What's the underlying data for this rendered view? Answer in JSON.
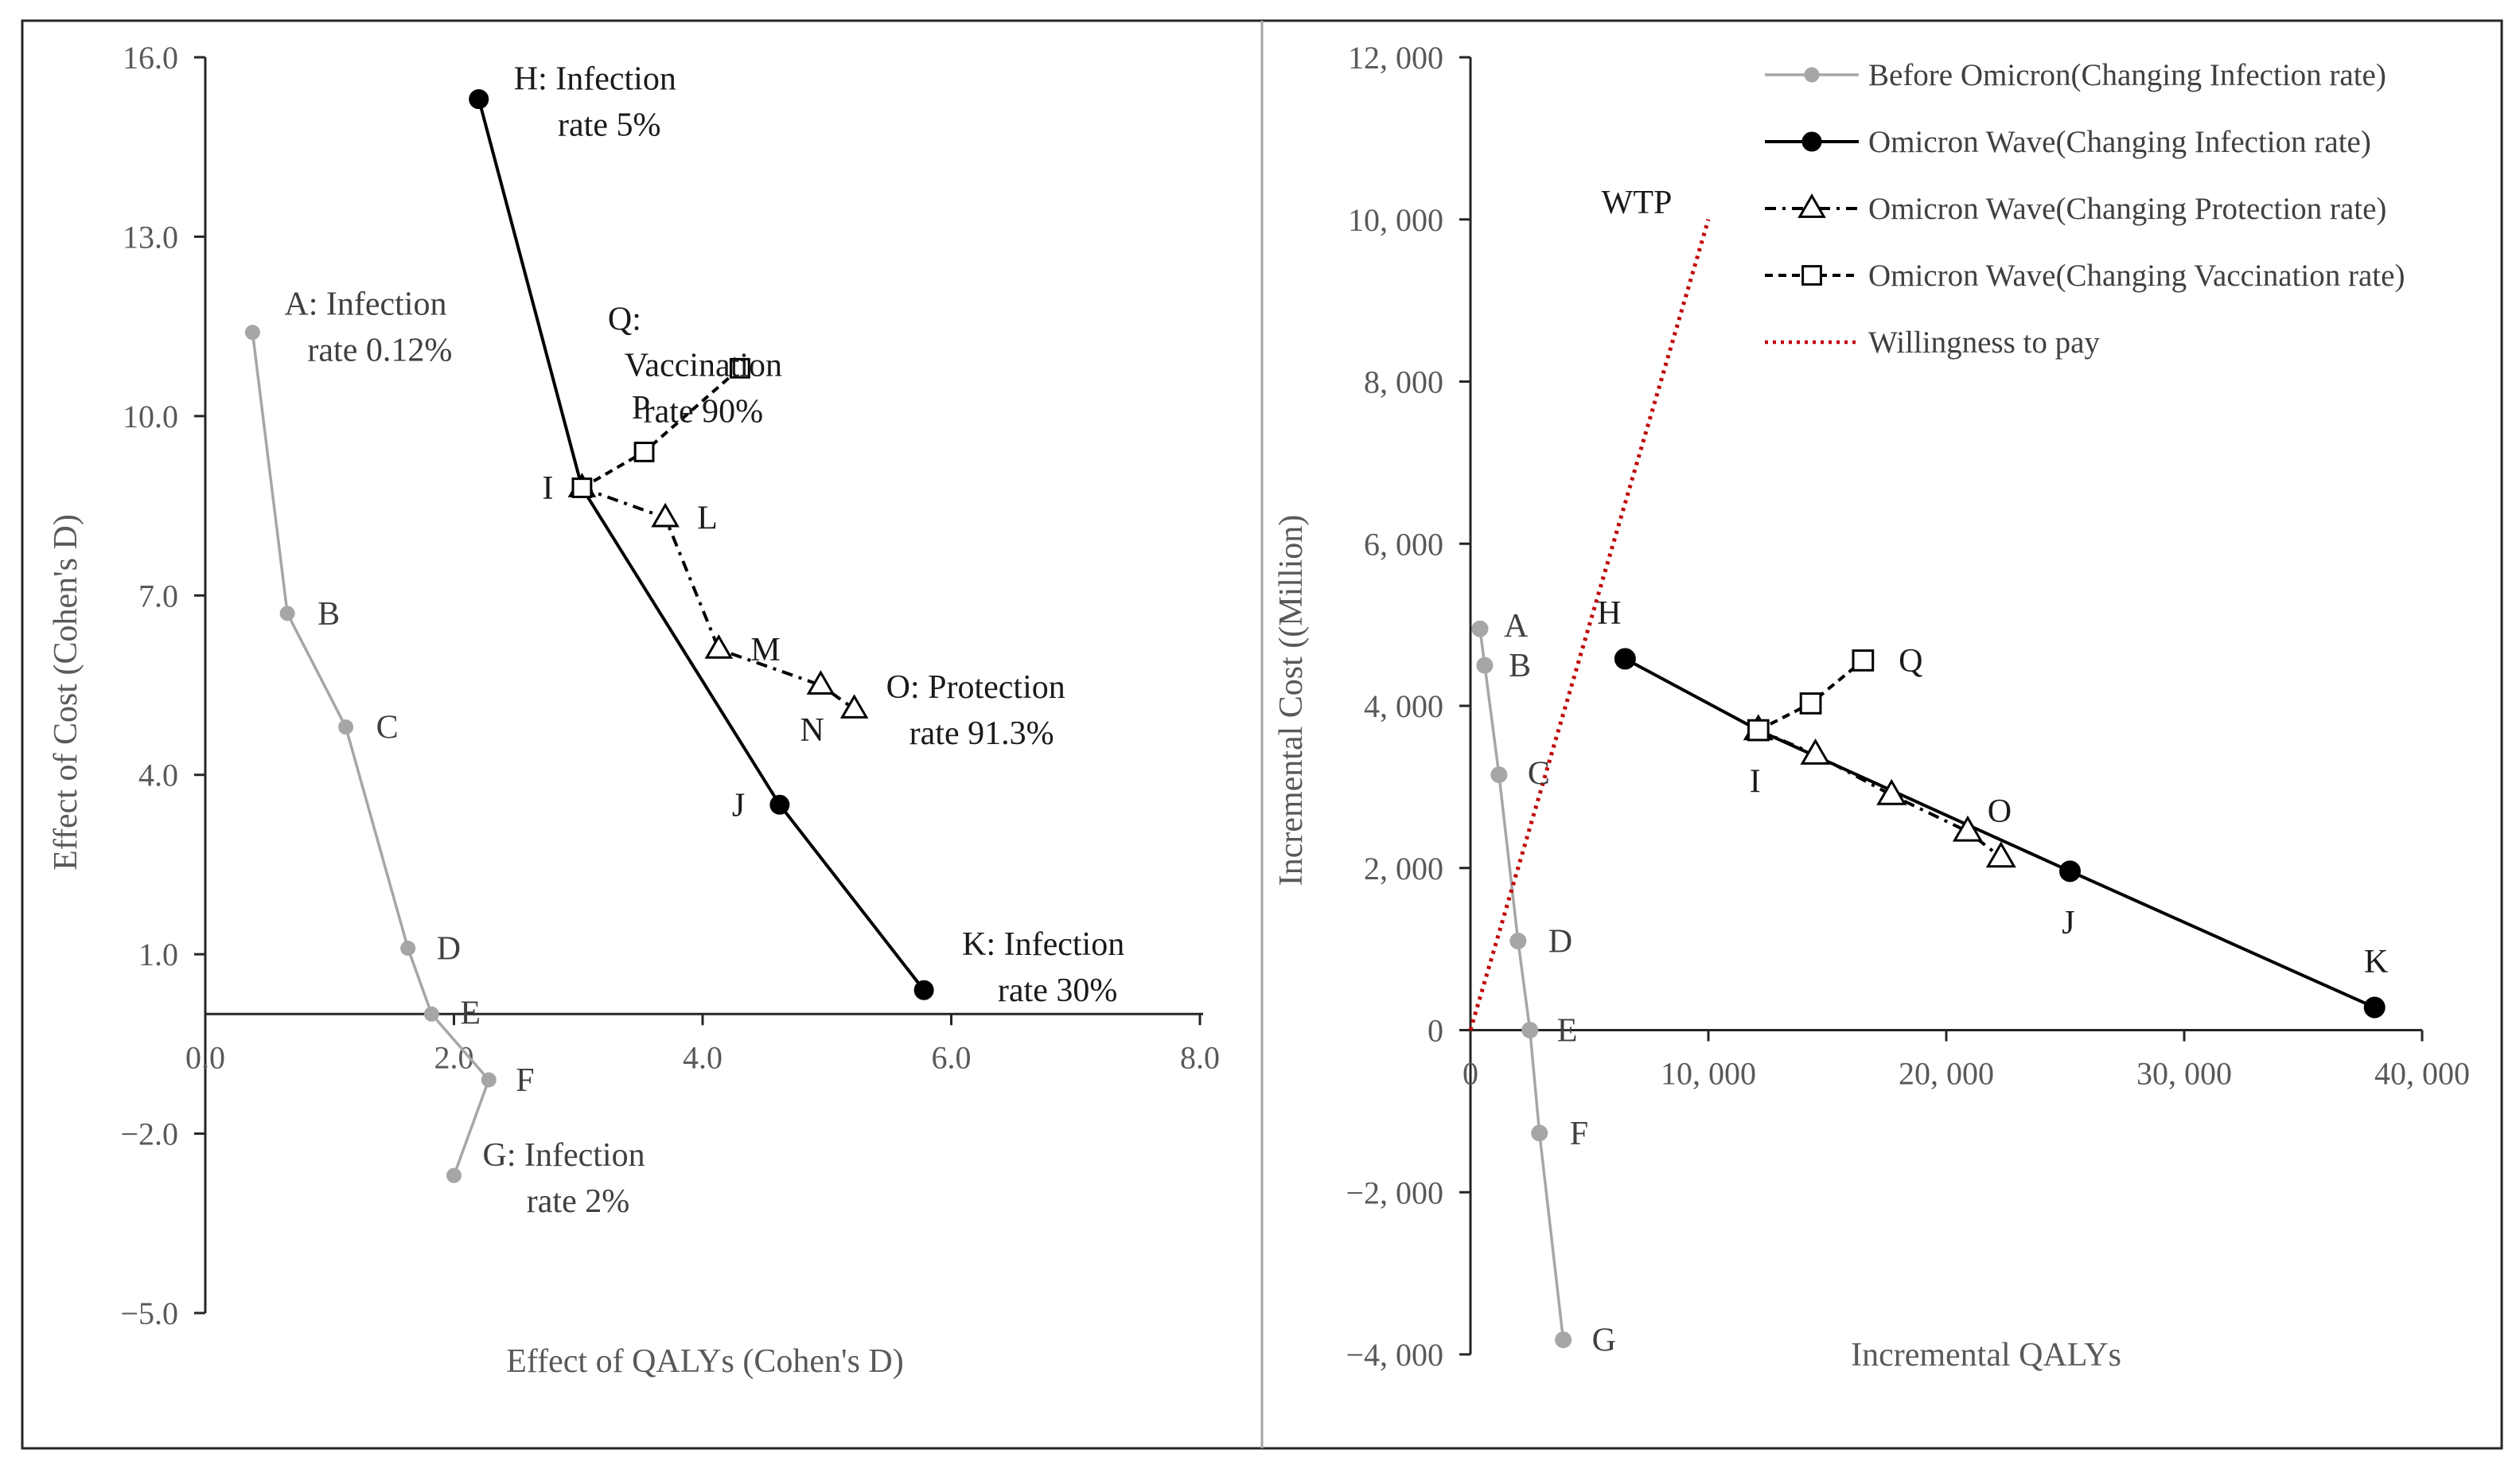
{
  "chart_data": [
    {
      "type": "line",
      "title": "",
      "xlabel": "Effect of QALYs (Cohen's D)",
      "ylabel": "Effect of Cost (Cohen's D)",
      "xlim": [
        0,
        8
      ],
      "ylim": [
        -5,
        16
      ],
      "x_ticks": [
        0,
        2,
        4,
        6,
        8
      ],
      "x_tick_labels": [
        "0.0",
        "2.0",
        "4.0",
        "6.0",
        "8.0"
      ],
      "y_ticks": [
        16,
        13,
        10,
        7,
        4,
        1,
        -2,
        -5
      ],
      "y_tick_labels": [
        "16.0",
        "13.0",
        "10.0",
        "7.0",
        "4.0",
        "1.0",
        "−2.0",
        "−5.0"
      ],
      "series": [
        {
          "name": "Before Omicron(Changing Infection rate)",
          "color": "#a6a6a6",
          "marker": "circle",
          "points": [
            {
              "id": "A",
              "x": 0.38,
              "y": 11.4
            },
            {
              "id": "B",
              "x": 0.66,
              "y": 6.7
            },
            {
              "id": "C",
              "x": 1.13,
              "y": 4.8
            },
            {
              "id": "D",
              "x": 1.63,
              "y": 1.1
            },
            {
              "id": "E",
              "x": 1.82,
              "y": 0.0
            },
            {
              "id": "F",
              "x": 2.28,
              "y": -1.1
            },
            {
              "id": "G",
              "x": 2.0,
              "y": -2.7
            }
          ]
        },
        {
          "name": "Omicron Wave(Changing Infection rate)",
          "color": "#000000",
          "marker": "circle",
          "points": [
            {
              "id": "H",
              "x": 2.2,
              "y": 15.3
            },
            {
              "id": "I",
              "x": 3.03,
              "y": 8.8
            },
            {
              "id": "J",
              "x": 4.62,
              "y": 3.5
            },
            {
              "id": "K",
              "x": 5.78,
              "y": 0.4
            }
          ]
        },
        {
          "name": "Omicron Wave(Changing Protection rate)",
          "color": "#000000",
          "marker": "triangle",
          "points": [
            {
              "id": "I",
              "x": 3.03,
              "y": 8.8
            },
            {
              "id": "L",
              "x": 3.7,
              "y": 8.3
            },
            {
              "id": "M",
              "x": 4.13,
              "y": 6.1
            },
            {
              "id": "N",
              "x": 4.95,
              "y": 5.5
            },
            {
              "id": "O",
              "x": 5.22,
              "y": 5.1
            }
          ]
        },
        {
          "name": "Omicron Wave(Changing Vaccination rate)",
          "color": "#000000",
          "marker": "square",
          "points": [
            {
              "id": "I",
              "x": 3.03,
              "y": 8.8
            },
            {
              "id": "P",
              "x": 3.53,
              "y": 9.4
            },
            {
              "id": "Q",
              "x": 4.3,
              "y": 10.8
            }
          ]
        }
      ],
      "annotations": [
        {
          "point": "A",
          "lines": [
            "A: Infection",
            "rate 0.12%"
          ]
        },
        {
          "point": "B",
          "lines": [
            "B"
          ]
        },
        {
          "point": "C",
          "lines": [
            "C"
          ]
        },
        {
          "point": "D",
          "lines": [
            "D"
          ]
        },
        {
          "point": "E",
          "lines": [
            "E"
          ]
        },
        {
          "point": "F",
          "lines": [
            "F"
          ]
        },
        {
          "point": "G",
          "lines": [
            "G: Infection",
            "rate 2%"
          ]
        },
        {
          "point": "H",
          "lines": [
            "H: Infection",
            "rate 5%"
          ]
        },
        {
          "point": "I",
          "lines": [
            "I"
          ]
        },
        {
          "point": "J",
          "lines": [
            "J"
          ]
        },
        {
          "point": "K",
          "lines": [
            "K: Infection",
            "rate 30%"
          ]
        },
        {
          "point": "L",
          "lines": [
            "L"
          ]
        },
        {
          "point": "M",
          "lines": [
            "M"
          ]
        },
        {
          "point": "N",
          "lines": [
            "N"
          ]
        },
        {
          "point": "O",
          "lines": [
            "O: Protection",
            "rate 91.3%"
          ]
        },
        {
          "point": "P",
          "lines": [
            "P"
          ]
        },
        {
          "point": "Q",
          "lines": [
            "Q:",
            "Vaccination",
            "rate 90%"
          ]
        }
      ]
    },
    {
      "type": "line",
      "title": "",
      "xlabel": "Incremental QALYs",
      "ylabel": "Incremental Cost ((Million)",
      "xlim": [
        0,
        40000
      ],
      "ylim": [
        -4000,
        12000
      ],
      "x_ticks": [
        0,
        10000,
        20000,
        30000,
        40000
      ],
      "x_tick_labels": [
        "0",
        "10, 000",
        "20, 000",
        "30, 000",
        "40, 000"
      ],
      "y_ticks": [
        12000,
        10000,
        8000,
        6000,
        4000,
        2000,
        0,
        -2000,
        -4000
      ],
      "y_tick_labels": [
        "12, 000",
        "10, 000",
        "8, 000",
        "6, 000",
        "4, 000",
        "2, 000",
        "0",
        "−2, 000",
        "−4, 000"
      ],
      "series": [
        {
          "name": "Before Omicron(Changing Infection rate)",
          "color": "#a6a6a6",
          "marker": "circle",
          "points": [
            {
              "id": "A",
              "x": 400,
              "y": 4950
            },
            {
              "id": "B",
              "x": 600,
              "y": 4500
            },
            {
              "id": "C",
              "x": 1200,
              "y": 3150
            },
            {
              "id": "D",
              "x": 2000,
              "y": 1100
            },
            {
              "id": "E",
              "x": 2500,
              "y": 0
            },
            {
              "id": "F",
              "x": 2900,
              "y": -1270
            },
            {
              "id": "G",
              "x": 3900,
              "y": -3820
            }
          ]
        },
        {
          "name": "Omicron Wave(Changing Infection rate)",
          "color": "#000000",
          "marker": "circle",
          "points": [
            {
              "id": "H",
              "x": 6500,
              "y": 4580
            },
            {
              "id": "I",
              "x": 12100,
              "y": 3700
            },
            {
              "id": "J",
              "x": 25200,
              "y": 1960
            },
            {
              "id": "K",
              "x": 38000,
              "y": 280
            }
          ]
        },
        {
          "name": "Omicron Wave(Changing Protection rate)",
          "color": "#000000",
          "marker": "triangle",
          "points": [
            {
              "id": "I",
              "x": 12100,
              "y": 3700
            },
            {
              "id": "",
              "x": 14500,
              "y": 3400
            },
            {
              "id": "",
              "x": 17700,
              "y": 2900
            },
            {
              "id": "O",
              "x": 20900,
              "y": 2450
            },
            {
              "id": "",
              "x": 22300,
              "y": 2130
            }
          ]
        },
        {
          "name": "Omicron Wave(Changing Vaccination rate)",
          "color": "#000000",
          "marker": "square",
          "points": [
            {
              "id": "I",
              "x": 12100,
              "y": 3700
            },
            {
              "id": "",
              "x": 14300,
              "y": 4030
            },
            {
              "id": "Q",
              "x": 16500,
              "y": 4560
            }
          ]
        },
        {
          "name": "Willingness to pay",
          "color": "#c00000",
          "marker": "none",
          "points": [
            {
              "id": "",
              "x": 0,
              "y": 0
            },
            {
              "id": "",
              "x": 10000,
              "y": 10000
            }
          ]
        }
      ],
      "annotations": [
        {
          "point": "A",
          "lines": [
            "A"
          ]
        },
        {
          "point": "B",
          "lines": [
            "B"
          ]
        },
        {
          "point": "C",
          "lines": [
            "C"
          ]
        },
        {
          "point": "D",
          "lines": [
            "D"
          ]
        },
        {
          "point": "E",
          "lines": [
            "E"
          ]
        },
        {
          "point": "F",
          "lines": [
            "F"
          ]
        },
        {
          "point": "G",
          "lines": [
            "G"
          ]
        },
        {
          "point": "H",
          "lines": [
            "H"
          ]
        },
        {
          "point": "I",
          "lines": [
            "I"
          ]
        },
        {
          "point": "J",
          "lines": [
            "J"
          ]
        },
        {
          "point": "K",
          "lines": [
            "K"
          ]
        },
        {
          "point": "O",
          "lines": [
            "O"
          ]
        },
        {
          "point": "Q",
          "lines": [
            "Q"
          ]
        },
        {
          "point": "WTP",
          "lines": [
            "WTP"
          ]
        }
      ],
      "legend": {
        "position": "top-right",
        "entries": [
          "Before Omicron(Changing Infection rate)",
          "Omicron Wave(Changing Infection rate)",
          "Omicron Wave(Changing Protection rate)",
          "Omicron Wave(Changing Vaccination rate)",
          "Willingness to pay"
        ]
      }
    }
  ]
}
